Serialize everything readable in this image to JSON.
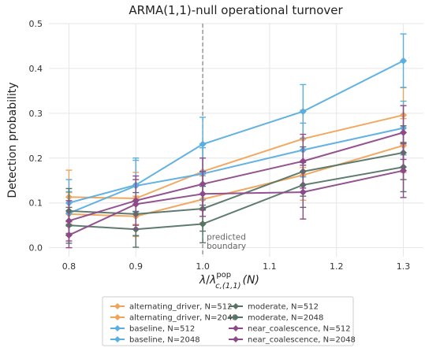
{
  "chart_data": {
    "type": "line",
    "title": "ARMA(1,1)-null operational turnover",
    "ylabel": "Detection probability",
    "xlabel": {
      "lambda": "λ",
      "slash": "/",
      "lambda_c": "λ",
      "pop": "pop",
      "sub": "c,(1,1)",
      "arg": "(N)"
    },
    "x": [
      0.8,
      0.9,
      1.0,
      1.15,
      1.3
    ],
    "xlim": [
      0.77,
      1.33
    ],
    "ylim": [
      -0.02,
      0.5
    ],
    "xticks": [
      0.8,
      0.9,
      1.0,
      1.1,
      1.2,
      1.3
    ],
    "yticks": [
      0.0,
      0.1,
      0.2,
      0.3,
      0.4,
      0.5
    ],
    "xtick_labels": [
      "0.8",
      "0.9",
      "1.0",
      "1.1",
      "1.2",
      "1.3"
    ],
    "ytick_labels": [
      "0.0",
      "0.1",
      "0.2",
      "0.3",
      "0.4",
      "0.5"
    ],
    "grid": true,
    "vline": {
      "x": 1.0,
      "label_line1": "predicted",
      "label_line2": "boundary"
    },
    "legend_position": "bottom",
    "series": [
      {
        "name": "alternating_driver, N=512",
        "color": "#f0a45a",
        "values": [
          0.113,
          0.11,
          0.17,
          0.243,
          0.296
        ],
        "err": [
          0.06,
          0.058,
          0.062,
          0.064,
          0.062
        ]
      },
      {
        "name": "alternating_driver, N=2048",
        "color": "#f0a45a",
        "values": [
          0.075,
          0.07,
          0.108,
          0.162,
          0.228
        ],
        "err": [
          0.048,
          0.045,
          0.052,
          0.056,
          0.06
        ]
      },
      {
        "name": "baseline, N=512",
        "color": "#5aaee0",
        "values": [
          0.1,
          0.14,
          0.231,
          0.304,
          0.417
        ],
        "err": [
          0.052,
          0.06,
          0.06,
          0.06,
          0.06
        ]
      },
      {
        "name": "baseline, N=2048",
        "color": "#5aaee0",
        "values": [
          0.077,
          0.138,
          0.165,
          0.218,
          0.267
        ],
        "err": [
          0.048,
          0.057,
          0.058,
          0.06,
          0.06
        ]
      },
      {
        "name": "moderate, N=512",
        "color": "#557466",
        "values": [
          0.082,
          0.075,
          0.087,
          0.17,
          0.212
        ],
        "err": [
          0.05,
          0.048,
          0.05,
          0.055,
          0.06
        ]
      },
      {
        "name": "moderate, N=2048",
        "color": "#557466",
        "values": [
          0.05,
          0.041,
          0.053,
          0.14,
          0.18
        ],
        "err": [
          0.04,
          0.04,
          0.042,
          0.05,
          0.055
        ]
      },
      {
        "name": "near_coalescence, N=512",
        "color": "#8d4a8a",
        "values": [
          0.06,
          0.105,
          0.142,
          0.193,
          0.257
        ],
        "err": [
          0.045,
          0.055,
          0.058,
          0.06,
          0.06
        ]
      },
      {
        "name": "near_coalescence, N=2048",
        "color": "#8d4a8a",
        "values": [
          0.028,
          0.097,
          0.12,
          0.124,
          0.172
        ],
        "err": [
          0.03,
          0.055,
          0.05,
          0.06,
          0.06
        ]
      }
    ]
  }
}
